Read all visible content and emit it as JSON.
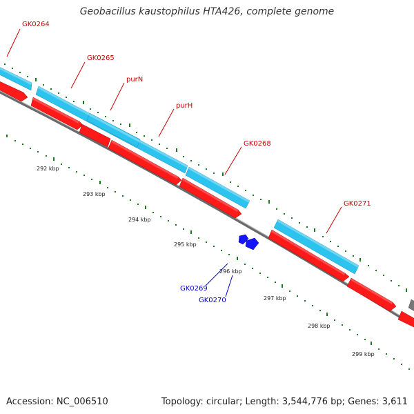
{
  "title": "Geobacillus kaustophilus HTA426, complete genome",
  "footer": {
    "accession": "Accession: NC_006510",
    "summary": "Topology: circular; Length: 3,544,776 bp; Genes: 3,611"
  },
  "colors": {
    "forward_gene": "#29c0ee",
    "reverse_gene": "#ff0000",
    "small_gene": "#0000ff",
    "backbone": "#888888",
    "tick": "#006600",
    "label_red": "#cc0000",
    "label_blue": "#0000cc"
  },
  "gene_labels": [
    {
      "id": "gk0264",
      "text": "GK0264",
      "color": "red"
    },
    {
      "id": "gk0265",
      "text": "GK0265",
      "color": "red"
    },
    {
      "id": "purn",
      "text": "purN",
      "color": "red"
    },
    {
      "id": "purh",
      "text": "purH",
      "color": "red"
    },
    {
      "id": "gk0268",
      "text": "GK0268",
      "color": "red"
    },
    {
      "id": "gk0271",
      "text": "GK0271",
      "color": "red"
    },
    {
      "id": "gk0269",
      "text": "GK0269",
      "color": "blue"
    },
    {
      "id": "gk0270",
      "text": "GK0270",
      "color": "blue"
    }
  ],
  "scale_labels": [
    "292 kbp",
    "293 kbp",
    "294 kbp",
    "295 kbp",
    "296 kbp",
    "297 kbp",
    "298 kbp",
    "299 kbp"
  ]
}
